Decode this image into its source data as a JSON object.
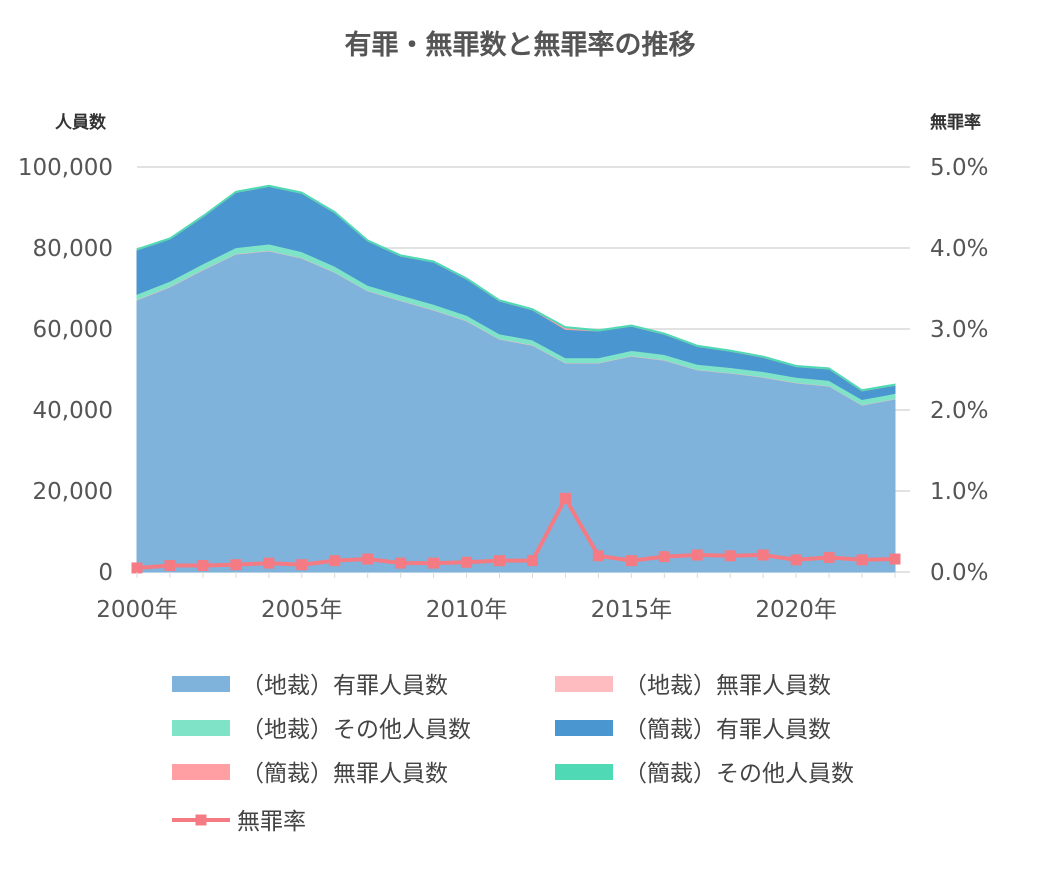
{
  "chart_data": {
    "type": "area",
    "title": "有罪・無罪数と無罪率の推移",
    "ylabel_left": "人員数",
    "ylabel_right": "無罪率",
    "ylim_left": [
      0,
      100000
    ],
    "ylim_right": [
      0,
      5.0
    ],
    "yticks_left": [
      "0",
      "20,000",
      "40,000",
      "60,000",
      "80,000",
      "100,000"
    ],
    "yticks_right": [
      "0.0%",
      "1.0%",
      "2.0%",
      "3.0%",
      "4.0%",
      "5.0%"
    ],
    "x": [
      2000,
      2001,
      2002,
      2003,
      2004,
      2005,
      2006,
      2007,
      2008,
      2009,
      2010,
      2011,
      2012,
      2013,
      2014,
      2015,
      2016,
      2017,
      2018,
      2019,
      2020,
      2021,
      2022,
      2023
    ],
    "xticks": [
      {
        "value": 2000,
        "label": "2000年"
      },
      {
        "value": 2005,
        "label": "2005年"
      },
      {
        "value": 2010,
        "label": "2010年"
      },
      {
        "value": 2015,
        "label": "2015年"
      },
      {
        "value": 2020,
        "label": "2020年"
      }
    ],
    "grid": true,
    "stacked": true,
    "legend_position": "bottom",
    "series": [
      {
        "name": "（地裁）有罪人員数",
        "color": "#7fb3dc",
        "axis": "left",
        "values": [
          67200,
          70400,
          74600,
          78500,
          79300,
          77500,
          74000,
          69400,
          67000,
          64700,
          62000,
          57500,
          56000,
          51600,
          51600,
          53300,
          52300,
          49900,
          49100,
          48100,
          46700,
          45900,
          41200,
          42700
        ]
      },
      {
        "name": "（地裁）無罪人員数",
        "color": "#ffbcc0",
        "axis": "left",
        "values": [
          100,
          100,
          100,
          100,
          100,
          100,
          100,
          100,
          100,
          100,
          100,
          100,
          100,
          100,
          100,
          100,
          100,
          100,
          100,
          100,
          100,
          100,
          100,
          100
        ]
      },
      {
        "name": "（地裁）その他人員数",
        "color": "#7fe3c8",
        "axis": "left",
        "values": [
          1300,
          1300,
          1400,
          1500,
          1600,
          1500,
          1400,
          1300,
          1300,
          1300,
          1300,
          1200,
          1200,
          1200,
          1200,
          1300,
          1300,
          1300,
          1300,
          1300,
          1300,
          1300,
          1300,
          1300
        ]
      },
      {
        "name": "（簡裁）有罪人員数",
        "color": "#4a96d0",
        "axis": "left",
        "values": [
          10900,
          10400,
          11600,
          13600,
          14200,
          14400,
          13200,
          10900,
          9600,
          10400,
          8900,
          8100,
          7400,
          7000,
          6600,
          6000,
          5000,
          4400,
          4000,
          3500,
          2600,
          2800,
          2100,
          2000
        ]
      },
      {
        "name": "（簡裁）無罪人員数",
        "color": "#ff9fa3",
        "axis": "left",
        "values": [
          20,
          20,
          20,
          20,
          20,
          20,
          20,
          20,
          20,
          20,
          20,
          20,
          20,
          400,
          20,
          20,
          20,
          20,
          20,
          20,
          20,
          20,
          20,
          20
        ]
      },
      {
        "name": "（簡裁）その他人員数",
        "color": "#4fd9b5",
        "axis": "left",
        "values": [
          280,
          280,
          280,
          280,
          280,
          280,
          280,
          280,
          280,
          280,
          280,
          280,
          280,
          280,
          280,
          280,
          280,
          280,
          280,
          280,
          280,
          280,
          280,
          280
        ]
      }
    ],
    "line_series": {
      "name": "無罪率",
      "color": "#f47b83",
      "axis": "right",
      "unit": "%",
      "values": [
        0.05,
        0.08,
        0.08,
        0.09,
        0.11,
        0.09,
        0.14,
        0.16,
        0.11,
        0.11,
        0.12,
        0.14,
        0.14,
        0.91,
        0.2,
        0.14,
        0.19,
        0.21,
        0.2,
        0.21,
        0.15,
        0.18,
        0.15,
        0.16
      ]
    }
  }
}
